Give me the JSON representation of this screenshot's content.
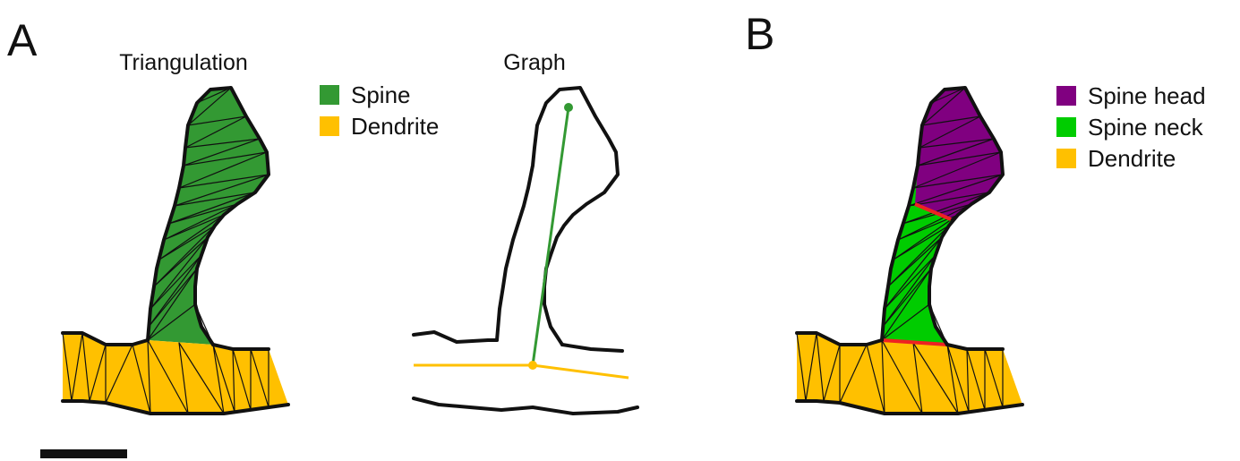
{
  "panel_a": {
    "label": "A",
    "triangulation_title": "Triangulation",
    "graph_title": "Graph",
    "legend": [
      "Spine",
      "Dendrite"
    ]
  },
  "panel_b": {
    "label": "B",
    "legend": [
      "Spine head",
      "Spine neck",
      "Dendrite"
    ]
  }
}
